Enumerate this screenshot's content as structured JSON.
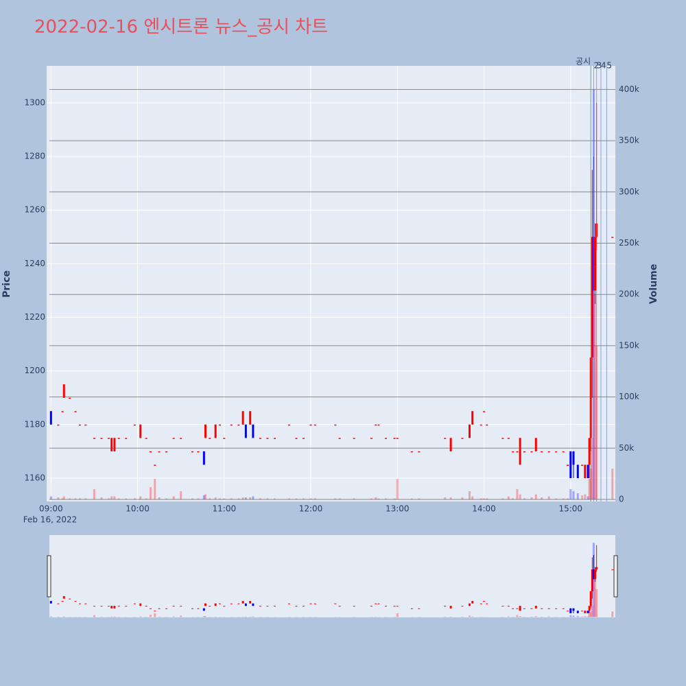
{
  "chart_data": {
    "type": "candlestick",
    "title": "2022-02-16 엔시트론 뉴스_공시 차트",
    "y_title": "Price",
    "y2_title": "Volume",
    "x_date_label": "Feb 16, 2022",
    "increasing_color": "#ff0000",
    "decreasing_color": "#0000ff",
    "x": [
      "09:00",
      "09:05",
      "09:08",
      "09:09",
      "09:13",
      "09:17",
      "09:20",
      "09:24",
      "09:30",
      "09:35",
      "09:40",
      "09:42",
      "09:44",
      "09:47",
      "09:52",
      "09:58",
      "10:02",
      "10:06",
      "10:09",
      "10:12",
      "10:15",
      "10:20",
      "10:25",
      "10:30",
      "10:38",
      "10:42",
      "10:46",
      "10:47",
      "10:50",
      "10:54",
      "10:57",
      "11:00",
      "11:05",
      "11:10",
      "11:13",
      "11:15",
      "11:18",
      "11:20",
      "11:25",
      "11:30",
      "11:35",
      "11:45",
      "11:50",
      "11:55",
      "12:00",
      "12:03",
      "12:17",
      "12:20",
      "12:30",
      "12:42",
      "12:45",
      "12:47",
      "12:52",
      "12:58",
      "13:00",
      "13:10",
      "13:15",
      "13:33",
      "13:37",
      "13:45",
      "13:50",
      "13:52",
      "13:58",
      "14:00",
      "14:02",
      "14:13",
      "14:17",
      "14:20",
      "14:23",
      "14:25",
      "14:28",
      "14:33",
      "14:36",
      "14:40",
      "14:45",
      "14:50",
      "14:55",
      "14:58",
      "15:00",
      "15:02",
      "15:05",
      "15:08",
      "15:10",
      "15:12",
      "15:13",
      "15:14",
      "15:15",
      "15:16",
      "15:17",
      "15:18",
      "15:29"
    ],
    "open": [
      1185,
      1180,
      1185,
      1190,
      1190,
      1185,
      1180,
      1180,
      1175,
      1175,
      1175,
      1170,
      1170,
      1175,
      1175,
      1180,
      1175,
      1175,
      1170,
      1165,
      1170,
      1170,
      1175,
      1175,
      1170,
      1170,
      1170,
      1175,
      1175,
      1175,
      1180,
      1175,
      1180,
      1180,
      1180,
      1180,
      1180,
      1180,
      1175,
      1175,
      1175,
      1180,
      1175,
      1175,
      1180,
      1180,
      1180,
      1175,
      1175,
      1175,
      1180,
      1180,
      1175,
      1175,
      1175,
      1170,
      1170,
      1175,
      1170,
      1175,
      1175,
      1180,
      1180,
      1185,
      1180,
      1175,
      1175,
      1170,
      1170,
      1165,
      1170,
      1170,
      1170,
      1170,
      1170,
      1170,
      1170,
      1165,
      1170,
      1170,
      1165,
      1165,
      1160,
      1165,
      1165,
      1175,
      1205,
      1250,
      1230,
      1250,
      1250
    ],
    "high": [
      1185,
      1180,
      1185,
      1195,
      1190,
      1185,
      1180,
      1180,
      1175,
      1175,
      1175,
      1175,
      1175,
      1175,
      1175,
      1180,
      1180,
      1175,
      1170,
      1165,
      1170,
      1170,
      1175,
      1175,
      1170,
      1170,
      1170,
      1180,
      1175,
      1180,
      1180,
      1175,
      1180,
      1180,
      1185,
      1180,
      1185,
      1180,
      1175,
      1175,
      1175,
      1180,
      1175,
      1175,
      1180,
      1180,
      1180,
      1175,
      1175,
      1175,
      1180,
      1180,
      1175,
      1175,
      1175,
      1170,
      1170,
      1175,
      1175,
      1175,
      1180,
      1185,
      1180,
      1185,
      1180,
      1175,
      1175,
      1170,
      1170,
      1175,
      1170,
      1170,
      1175,
      1170,
      1170,
      1170,
      1170,
      1165,
      1170,
      1170,
      1165,
      1165,
      1165,
      1165,
      1175,
      1205,
      1275,
      1280,
      1255,
      1300,
      1250
    ],
    "low": [
      1180,
      1180,
      1185,
      1190,
      1190,
      1185,
      1180,
      1180,
      1175,
      1175,
      1175,
      1170,
      1170,
      1175,
      1175,
      1180,
      1175,
      1175,
      1170,
      1165,
      1170,
      1170,
      1175,
      1175,
      1170,
      1170,
      1165,
      1175,
      1175,
      1175,
      1180,
      1175,
      1180,
      1180,
      1180,
      1175,
      1180,
      1175,
      1175,
      1175,
      1175,
      1180,
      1175,
      1175,
      1180,
      1180,
      1180,
      1175,
      1175,
      1175,
      1180,
      1180,
      1175,
      1175,
      1175,
      1170,
      1170,
      1175,
      1170,
      1175,
      1175,
      1180,
      1180,
      1185,
      1180,
      1175,
      1175,
      1170,
      1170,
      1165,
      1170,
      1170,
      1170,
      1170,
      1170,
      1170,
      1170,
      1165,
      1160,
      1160,
      1160,
      1165,
      1160,
      1160,
      1160,
      1170,
      1190,
      1230,
      1225,
      1245,
      1250
    ],
    "close": [
      1180,
      1180,
      1185,
      1195,
      1190,
      1185,
      1180,
      1180,
      1175,
      1175,
      1175,
      1175,
      1175,
      1175,
      1175,
      1180,
      1180,
      1175,
      1170,
      1165,
      1170,
      1170,
      1175,
      1175,
      1170,
      1170,
      1165,
      1180,
      1175,
      1180,
      1180,
      1175,
      1180,
      1180,
      1185,
      1175,
      1185,
      1175,
      1175,
      1175,
      1175,
      1180,
      1175,
      1175,
      1180,
      1180,
      1180,
      1175,
      1175,
      1175,
      1180,
      1180,
      1175,
      1175,
      1175,
      1170,
      1170,
      1175,
      1175,
      1175,
      1180,
      1185,
      1180,
      1185,
      1180,
      1175,
      1175,
      1170,
      1170,
      1175,
      1170,
      1170,
      1175,
      1170,
      1170,
      1170,
      1170,
      1165,
      1160,
      1165,
      1160,
      1165,
      1165,
      1160,
      1175,
      1205,
      1250,
      1230,
      1250,
      1255,
      1250
    ],
    "volume": [
      3000,
      2000,
      1000,
      3000,
      1000,
      1000,
      1000,
      1000,
      10000,
      2000,
      1000,
      3000,
      3000,
      1000,
      1000,
      1000,
      3000,
      1000,
      12000,
      20000,
      2000,
      1000,
      3000,
      8000,
      1000,
      1000,
      4000,
      5000,
      1000,
      2000,
      1000,
      1000,
      1000,
      1000,
      2000,
      2000,
      2000,
      3000,
      1000,
      1000,
      1000,
      1000,
      1000,
      1000,
      1000,
      1000,
      1000,
      1000,
      1000,
      1000,
      2000,
      1000,
      1000,
      1000,
      20000,
      1000,
      1000,
      2000,
      2000,
      2000,
      8000,
      3000,
      1000,
      1000,
      1000,
      1000,
      3000,
      1000,
      10000,
      5000,
      1000,
      2000,
      5000,
      2000,
      3000,
      1000,
      1000,
      1000,
      10000,
      8000,
      6000,
      4000,
      5000,
      3000,
      20000,
      30000,
      60000,
      400000,
      200000,
      150000,
      30000
    ],
    "xlim": [
      "08:57",
      "15:31"
    ],
    "xticks": [
      "09:00",
      "10:00",
      "11:00",
      "12:00",
      "13:00",
      "14:00",
      "15:00"
    ],
    "ylim": [
      1151.3,
      1313.8
    ],
    "yticks": [
      1160,
      1180,
      1200,
      1220,
      1240,
      1260,
      1280,
      1300
    ],
    "y2lim": [
      -2000,
      423000
    ],
    "y2ticks": [
      0,
      {
        "value": 50000,
        "label": "50k"
      },
      {
        "value": 100000,
        "label": "100k"
      },
      {
        "value": 150000,
        "label": "150k"
      },
      {
        "value": 200000,
        "label": "200k"
      },
      {
        "value": 250000,
        "label": "250k"
      },
      {
        "value": 300000,
        "label": "300k"
      },
      {
        "value": 350000,
        "label": "350k"
      },
      {
        "value": 400000,
        "label": "400k"
      }
    ],
    "annotations": [
      {
        "x": "15:14",
        "label": "공시"
      },
      {
        "x": "15:16",
        "label": "2"
      },
      {
        "x": "15:18",
        "label": "3"
      },
      {
        "x": "15:21",
        "label": "4"
      },
      {
        "x": "15:25",
        "label": "5"
      }
    ],
    "grid": true,
    "rangeslider": true
  }
}
